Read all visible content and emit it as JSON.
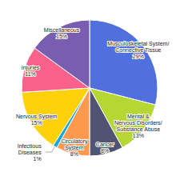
{
  "chart_data": {
    "type": "pie",
    "categories": [
      "Musculoskeletal System/\nConnective Tissue",
      "Mental &\nNervous Disorders/\nSubstance Abuse",
      "Cancer",
      "Circulatory\nSystem",
      "Infectious\nDiseases",
      "Nervous System",
      "Injuries",
      "Miscellaneous"
    ],
    "values": [
      29,
      13,
      8,
      8,
      1,
      15,
      11,
      15
    ],
    "value_labels": [
      "29%",
      "13%",
      "8%",
      "8%",
      "1%",
      "15%",
      "11%",
      "15%"
    ],
    "data_labels": true
  }
}
